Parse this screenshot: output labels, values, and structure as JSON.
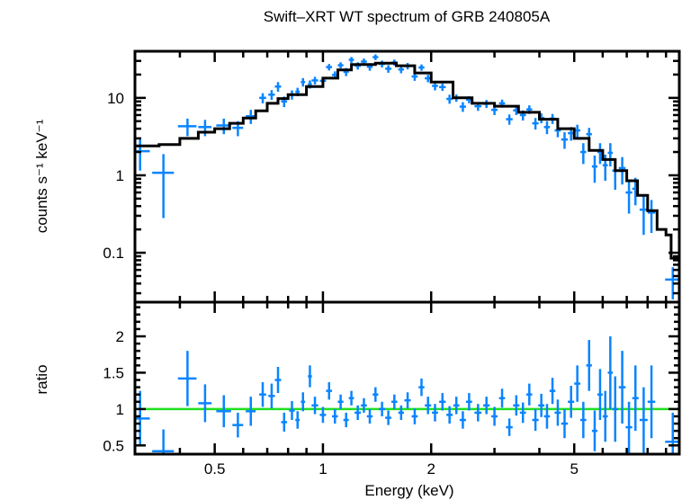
{
  "chart_data": [
    {
      "panel": "spectrum",
      "type": "scatter",
      "title": "Swift–XRT WT spectrum of GRB 240805A",
      "ylabel": "counts s⁻¹ keV⁻¹",
      "xscale": "log",
      "yscale": "log",
      "xlim": [
        0.3,
        9.8
      ],
      "ylim": [
        0.023,
        40
      ],
      "yticks": [
        {
          "v": 0.1,
          "label": "0.1"
        },
        {
          "v": 1,
          "label": "1"
        },
        {
          "v": 10,
          "label": "10"
        }
      ],
      "colors": {
        "data": "#0a84ff",
        "model": "#000000"
      },
      "model_step": [
        [
          0.3,
          2.4
        ],
        [
          0.35,
          2.5
        ],
        [
          0.4,
          3.0
        ],
        [
          0.45,
          3.6
        ],
        [
          0.5,
          4.0
        ],
        [
          0.55,
          4.7
        ],
        [
          0.6,
          5.5
        ],
        [
          0.65,
          6.8
        ],
        [
          0.7,
          8.5
        ],
        [
          0.75,
          9.8
        ],
        [
          0.8,
          11
        ],
        [
          0.9,
          14
        ],
        [
          1.0,
          18
        ],
        [
          1.1,
          23
        ],
        [
          1.2,
          27
        ],
        [
          1.4,
          28
        ],
        [
          1.6,
          26
        ],
        [
          1.8,
          21
        ],
        [
          2.0,
          16
        ],
        [
          2.3,
          10
        ],
        [
          2.6,
          8.5
        ],
        [
          3.0,
          7.8
        ],
        [
          3.5,
          6.5
        ],
        [
          4.0,
          5.3
        ],
        [
          4.5,
          4.0
        ],
        [
          5.0,
          3.0
        ],
        [
          5.5,
          2.1
        ],
        [
          6.0,
          1.6
        ],
        [
          6.5,
          1.15
        ],
        [
          7.0,
          0.85
        ],
        [
          7.5,
          0.55
        ],
        [
          8.0,
          0.35
        ],
        [
          8.5,
          0.2
        ],
        [
          9.0,
          0.17
        ],
        [
          9.3,
          0.085
        ],
        [
          9.8,
          0.085
        ]
      ],
      "points_note_columns": [
        "energy_keV",
        "energy_halfwidth",
        "rate",
        "rate_err"
      ],
      "points": [
        [
          0.31,
          0.02,
          2.05,
          0.9
        ],
        [
          0.36,
          0.025,
          1.08,
          0.8
        ],
        [
          0.42,
          0.025,
          4.3,
          1.1
        ],
        [
          0.47,
          0.02,
          4.2,
          1.0
        ],
        [
          0.53,
          0.025,
          4.4,
          1.0
        ],
        [
          0.58,
          0.02,
          4.1,
          0.9
        ],
        [
          0.63,
          0.02,
          5.8,
          1.2
        ],
        [
          0.68,
          0.015,
          10.0,
          1.5
        ],
        [
          0.72,
          0.015,
          11,
          1.6
        ],
        [
          0.75,
          0.015,
          14,
          2
        ],
        [
          0.78,
          0.015,
          9,
          1.4
        ],
        [
          0.82,
          0.015,
          11,
          1.5
        ],
        [
          0.85,
          0.012,
          12,
          1.5
        ],
        [
          0.88,
          0.012,
          16,
          2
        ],
        [
          0.92,
          0.012,
          15,
          1.8
        ],
        [
          0.95,
          0.02,
          16.8,
          1.9
        ],
        [
          1.0,
          0.02,
          16.6,
          2.0
        ],
        [
          1.04,
          0.02,
          25,
          2.4
        ],
        [
          1.08,
          0.02,
          19.8,
          2.2
        ],
        [
          1.12,
          0.02,
          26.4,
          2.4
        ],
        [
          1.16,
          0.02,
          21.7,
          2.6
        ],
        [
          1.2,
          0.02,
          31,
          2.7
        ],
        [
          1.25,
          0.025,
          26,
          2.8
        ],
        [
          1.3,
          0.025,
          29.4,
          2.8
        ],
        [
          1.35,
          0.025,
          25.2,
          2.8
        ],
        [
          1.4,
          0.025,
          33.6,
          2.8
        ],
        [
          1.46,
          0.03,
          27.5,
          2.8
        ],
        [
          1.52,
          0.03,
          23.8,
          2.7
        ],
        [
          1.58,
          0.03,
          28.6,
          2.6
        ],
        [
          1.65,
          0.03,
          23.3,
          2.5
        ],
        [
          1.72,
          0.035,
          25.8,
          2.5
        ],
        [
          1.8,
          0.035,
          18.9,
          2.3
        ],
        [
          1.88,
          0.035,
          24.7,
          2.3
        ],
        [
          1.96,
          0.04,
          17.9,
          2.0
        ],
        [
          2.05,
          0.04,
          14.3,
          1.8
        ],
        [
          2.15,
          0.045,
          13.8,
          1.5
        ],
        [
          2.25,
          0.045,
          9.7,
          1.3
        ],
        [
          2.35,
          0.045,
          10.0,
          1.1
        ],
        [
          2.45,
          0.05,
          7.7,
          1.1
        ],
        [
          2.55,
          0.05,
          9.5,
          1.0
        ],
        [
          2.7,
          0.06,
          7.8,
          1.0
        ],
        [
          2.85,
          0.06,
          8.4,
          1.0
        ],
        [
          3.0,
          0.06,
          7.0,
          1.0
        ],
        [
          3.15,
          0.06,
          8.5,
          1.0
        ],
        [
          3.3,
          0.07,
          5.3,
          0.8
        ],
        [
          3.45,
          0.07,
          6.9,
          0.9
        ],
        [
          3.6,
          0.07,
          6.0,
          0.9
        ],
        [
          3.75,
          0.07,
          7.1,
          0.9
        ],
        [
          3.9,
          0.08,
          4.7,
          0.8
        ],
        [
          4.05,
          0.08,
          5.5,
          0.8
        ],
        [
          4.2,
          0.08,
          4.2,
          0.8
        ],
        [
          4.35,
          0.08,
          5.4,
          0.8
        ],
        [
          4.5,
          0.09,
          3.8,
          0.7
        ],
        [
          4.7,
          0.1,
          2.9,
          0.7
        ],
        [
          4.9,
          0.1,
          3.5,
          0.7
        ],
        [
          5.1,
          0.1,
          3.8,
          0.7
        ],
        [
          5.3,
          0.1,
          2.0,
          0.6
        ],
        [
          5.5,
          0.1,
          3.4,
          0.7
        ],
        [
          5.7,
          0.1,
          1.3,
          0.5
        ],
        [
          5.9,
          0.1,
          2.0,
          0.6
        ],
        [
          6.1,
          0.1,
          1.35,
          0.5
        ],
        [
          6.3,
          0.1,
          1.95,
          0.65
        ],
        [
          6.5,
          0.12,
          1.15,
          0.5
        ],
        [
          6.8,
          0.15,
          1.24,
          0.48
        ],
        [
          7.1,
          0.15,
          0.6,
          0.28
        ],
        [
          7.4,
          0.15,
          0.67,
          0.26
        ],
        [
          7.8,
          0.2,
          0.36,
          0.19
        ],
        [
          8.2,
          0.2,
          0.33,
          0.15
        ],
        [
          9.4,
          0.45,
          0.045,
          0.02
        ]
      ]
    },
    {
      "panel": "ratio",
      "type": "scatter",
      "xlabel": "Energy (keV)",
      "ylabel": "ratio",
      "xscale": "log",
      "xlim": [
        0.3,
        9.8
      ],
      "ylim": [
        0.38,
        2.47
      ],
      "xticks": [
        {
          "v": 0.5,
          "label": "0.5"
        },
        {
          "v": 1,
          "label": "1"
        },
        {
          "v": 2,
          "label": "2"
        },
        {
          "v": 5,
          "label": "5"
        }
      ],
      "yticks": [
        {
          "v": 0.5,
          "label": "0.5"
        },
        {
          "v": 1,
          "label": "1"
        },
        {
          "v": 1.5,
          "label": "1.5"
        },
        {
          "v": 2,
          "label": "2"
        }
      ],
      "reference_line": {
        "value": 1,
        "color": "#1ee01e"
      },
      "colors": {
        "data": "#0a84ff"
      },
      "points_note_columns": [
        "energy_keV",
        "energy_halfwidth",
        "ratio",
        "ratio_err"
      ],
      "points": [
        [
          0.31,
          0.02,
          0.87,
          0.38
        ],
        [
          0.36,
          0.025,
          0.42,
          0.3
        ],
        [
          0.42,
          0.025,
          1.42,
          0.38
        ],
        [
          0.47,
          0.02,
          1.08,
          0.26
        ],
        [
          0.53,
          0.025,
          0.97,
          0.22
        ],
        [
          0.58,
          0.02,
          0.78,
          0.17
        ],
        [
          0.63,
          0.02,
          0.97,
          0.2
        ],
        [
          0.68,
          0.015,
          1.2,
          0.17
        ],
        [
          0.72,
          0.015,
          1.18,
          0.17
        ],
        [
          0.75,
          0.015,
          1.4,
          0.18
        ],
        [
          0.78,
          0.015,
          0.82,
          0.13
        ],
        [
          0.82,
          0.015,
          0.98,
          0.13
        ],
        [
          0.85,
          0.012,
          0.85,
          0.12
        ],
        [
          0.88,
          0.012,
          1.1,
          0.13
        ],
        [
          0.92,
          0.012,
          1.45,
          0.15
        ],
        [
          0.95,
          0.02,
          1.05,
          0.12
        ],
        [
          1.0,
          0.02,
          0.92,
          0.11
        ],
        [
          1.04,
          0.02,
          1.25,
          0.12
        ],
        [
          1.08,
          0.02,
          0.9,
          0.1
        ],
        [
          1.12,
          0.02,
          1.1,
          0.1
        ],
        [
          1.16,
          0.02,
          0.85,
          0.1
        ],
        [
          1.2,
          0.02,
          1.15,
          0.1
        ],
        [
          1.25,
          0.025,
          0.95,
          0.1
        ],
        [
          1.3,
          0.025,
          1.05,
          0.1
        ],
        [
          1.35,
          0.025,
          0.9,
          0.1
        ],
        [
          1.4,
          0.025,
          1.2,
          0.1
        ],
        [
          1.46,
          0.03,
          1.0,
          0.1
        ],
        [
          1.52,
          0.03,
          0.88,
          0.1
        ],
        [
          1.58,
          0.03,
          1.1,
          0.1
        ],
        [
          1.65,
          0.03,
          0.95,
          0.1
        ],
        [
          1.72,
          0.035,
          1.12,
          0.11
        ],
        [
          1.8,
          0.035,
          0.9,
          0.11
        ],
        [
          1.88,
          0.035,
          1.3,
          0.12
        ],
        [
          1.96,
          0.04,
          1.05,
          0.12
        ],
        [
          2.05,
          0.04,
          0.95,
          0.12
        ],
        [
          2.15,
          0.045,
          1.1,
          0.12
        ],
        [
          2.25,
          0.045,
          0.92,
          0.12
        ],
        [
          2.35,
          0.045,
          1.05,
          0.12
        ],
        [
          2.45,
          0.05,
          0.85,
          0.12
        ],
        [
          2.55,
          0.05,
          1.1,
          0.12
        ],
        [
          2.7,
          0.06,
          0.95,
          0.12
        ],
        [
          2.85,
          0.06,
          1.05,
          0.12
        ],
        [
          3.0,
          0.06,
          0.9,
          0.13
        ],
        [
          3.15,
          0.06,
          1.15,
          0.13
        ],
        [
          3.3,
          0.07,
          0.75,
          0.12
        ],
        [
          3.45,
          0.07,
          1.05,
          0.14
        ],
        [
          3.6,
          0.07,
          0.95,
          0.14
        ],
        [
          3.75,
          0.07,
          1.2,
          0.15
        ],
        [
          3.9,
          0.08,
          0.85,
          0.15
        ],
        [
          4.05,
          0.08,
          1.05,
          0.16
        ],
        [
          4.2,
          0.08,
          0.9,
          0.17
        ],
        [
          4.35,
          0.08,
          1.25,
          0.18
        ],
        [
          4.5,
          0.09,
          0.95,
          0.18
        ],
        [
          4.7,
          0.1,
          0.8,
          0.2
        ],
        [
          4.9,
          0.1,
          1.1,
          0.22
        ],
        [
          5.1,
          0.1,
          1.35,
          0.25
        ],
        [
          5.3,
          0.1,
          0.85,
          0.25
        ],
        [
          5.5,
          0.1,
          1.6,
          0.35
        ],
        [
          5.7,
          0.1,
          0.7,
          0.28
        ],
        [
          5.9,
          0.1,
          1.2,
          0.35
        ],
        [
          6.1,
          0.1,
          0.9,
          0.35
        ],
        [
          6.3,
          0.1,
          1.5,
          0.5
        ],
        [
          6.5,
          0.12,
          1.0,
          0.45
        ],
        [
          6.8,
          0.15,
          1.3,
          0.5
        ],
        [
          7.1,
          0.15,
          0.75,
          0.35
        ],
        [
          7.4,
          0.15,
          1.15,
          0.45
        ],
        [
          7.8,
          0.2,
          0.85,
          0.45
        ],
        [
          8.2,
          0.2,
          1.1,
          0.5
        ],
        [
          9.4,
          0.45,
          0.55,
          0.4
        ]
      ]
    }
  ]
}
